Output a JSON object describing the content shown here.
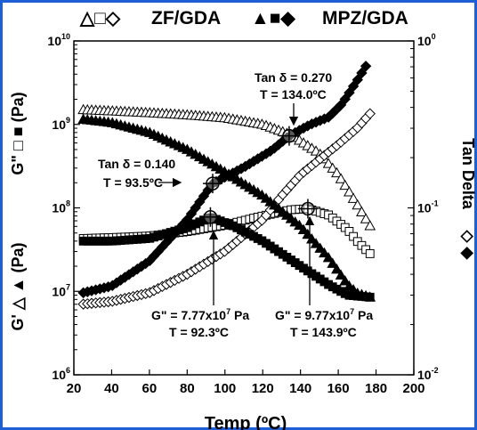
{
  "colors": {
    "frame": "#1e5fd6",
    "ink": "#000000",
    "open_marker": "#ffffff"
  },
  "legend": {
    "zf_symbols": "△□◇",
    "zf_label": "ZF/GDA",
    "mpz_symbols": "▲■◆",
    "mpz_label": "MPZ/GDA"
  },
  "axes": {
    "xlabel": "Temp (ºC)",
    "ylabel_left_top": "G\" □ ■ (Pa)",
    "ylabel_left_bottom": "G' △ ▲ (Pa)",
    "ylabel_right_top": "Tan Delta",
    "ylabel_right_bottom": "◇ ◆"
  },
  "annotations": [
    {
      "id": "tan-delta-270",
      "line1": "Tan δ = 0.270",
      "line2": "T = 134.0ºC"
    },
    {
      "id": "tan-delta-140",
      "line1": "Tan δ = 0.140",
      "line2": "T = 93.5ºC"
    },
    {
      "id": "g2-777",
      "line1": "G\" = 7.77x10",
      "line1_sup": "7",
      "line1_unit": " Pa",
      "line2": "T = 92.3ºC"
    },
    {
      "id": "g2-977",
      "line1": "G\" = 9.77x10",
      "line1_sup": "7",
      "line1_unit": " Pa",
      "line2": "T = 143.9ºC"
    }
  ],
  "chart_data": {
    "type": "scatter",
    "xlabel": "Temp (ºC)",
    "x_ticks": [
      "20",
      "40",
      "60",
      "80",
      "100",
      "120",
      "140",
      "160",
      "180",
      "200"
    ],
    "xlim": [
      20,
      200
    ],
    "y_left": {
      "scale": "log",
      "lim": [
        1000000,
        10000000000
      ],
      "ticks": [
        {
          "value": 1000000,
          "base": "10",
          "exp": "6"
        },
        {
          "value": 10000000,
          "base": "10",
          "exp": "7"
        },
        {
          "value": 100000000,
          "base": "10",
          "exp": "8"
        },
        {
          "value": 1000000000,
          "base": "10",
          "exp": "9"
        },
        {
          "value": 10000000000,
          "base": "10",
          "exp": "10"
        }
      ]
    },
    "y_right": {
      "scale": "log",
      "lim": [
        0.01,
        1
      ],
      "ticks": [
        {
          "value": 0.01,
          "base": "10",
          "exp": "-2"
        },
        {
          "value": 0.1,
          "base": "10",
          "exp": "-1"
        },
        {
          "value": 1,
          "base": "10",
          "exp": "0"
        }
      ]
    },
    "series": [
      {
        "id": "zf-gprime",
        "marker": "triangle",
        "filled": false,
        "axis": "left",
        "points": [
          [
            25,
            1500000000.0
          ],
          [
            40,
            1450000000.0
          ],
          [
            60,
            1380000000.0
          ],
          [
            80,
            1300000000.0
          ],
          [
            100,
            1200000000.0
          ],
          [
            120,
            1000000000.0
          ],
          [
            135,
            750000000.0
          ],
          [
            150,
            450000000.0
          ],
          [
            160,
            250000000.0
          ],
          [
            170,
            110000000.0
          ],
          [
            178,
            55000000.0
          ]
        ]
      },
      {
        "id": "zf-gdoubleprime",
        "marker": "square",
        "filled": false,
        "axis": "left",
        "points": [
          [
            25,
            43000000.0
          ],
          [
            40,
            44000000.0
          ],
          [
            60,
            46000000.0
          ],
          [
            80,
            52000000.0
          ],
          [
            100,
            62000000.0
          ],
          [
            120,
            80000000.0
          ],
          [
            135,
            95000000.0
          ],
          [
            143.9,
            97700000.0
          ],
          [
            155,
            82000000.0
          ],
          [
            165,
            55000000.0
          ],
          [
            170,
            40000000.0
          ],
          [
            177,
            28000000.0
          ]
        ]
      },
      {
        "id": "zf-tandelta",
        "marker": "diamond",
        "filled": false,
        "axis": "right",
        "points": [
          [
            25,
            0.0265
          ],
          [
            40,
            0.0275
          ],
          [
            60,
            0.031
          ],
          [
            80,
            0.04
          ],
          [
            100,
            0.055
          ],
          [
            120,
            0.085
          ],
          [
            130,
            0.118
          ],
          [
            140,
            0.158
          ],
          [
            150,
            0.195
          ],
          [
            160,
            0.24
          ],
          [
            170,
            0.3
          ],
          [
            178,
            0.38
          ]
        ]
      },
      {
        "id": "mpz-gprime",
        "marker": "triangle",
        "filled": true,
        "axis": "left",
        "points": [
          [
            25,
            1150000000.0
          ],
          [
            40,
            1050000000.0
          ],
          [
            60,
            800000000.0
          ],
          [
            80,
            500000000.0
          ],
          [
            100,
            270000000.0
          ],
          [
            120,
            140000000.0
          ],
          [
            140,
            60000000.0
          ],
          [
            155,
            25000000.0
          ],
          [
            165,
            12000000.0
          ],
          [
            170,
            9500000.0
          ],
          [
            177,
            8500000.0
          ]
        ]
      },
      {
        "id": "mpz-gdoubleprime",
        "marker": "square",
        "filled": true,
        "axis": "left",
        "points": [
          [
            25,
            40000000.0
          ],
          [
            40,
            40000000.0
          ],
          [
            60,
            43000000.0
          ],
          [
            80,
            58000000.0
          ],
          [
            92.3,
            77700000.0
          ],
          [
            105,
            60000000.0
          ],
          [
            120,
            40000000.0
          ],
          [
            140,
            20000000.0
          ],
          [
            155,
            12000000.0
          ],
          [
            165,
            9000000.0
          ],
          [
            177,
            8500000.0
          ]
        ]
      },
      {
        "id": "mpz-tandelta",
        "marker": "diamond",
        "filled": true,
        "axis": "right",
        "points": [
          [
            25,
            0.031
          ],
          [
            40,
            0.034
          ],
          [
            60,
            0.048
          ],
          [
            80,
            0.085
          ],
          [
            93.5,
            0.14
          ],
          [
            110,
            0.175
          ],
          [
            125,
            0.222
          ],
          [
            134,
            0.27
          ],
          [
            145,
            0.315
          ],
          [
            155,
            0.35
          ],
          [
            162,
            0.42
          ],
          [
            170,
            0.58
          ],
          [
            176,
            0.75
          ]
        ]
      }
    ],
    "highlight_points": [
      {
        "id": "mpz-tan-mark",
        "x": 93.5,
        "y": 0.14,
        "axis": "right"
      },
      {
        "id": "zf-tan-mark",
        "x": 134.0,
        "y": 0.27,
        "axis": "right"
      },
      {
        "id": "mpz-g2-mark",
        "x": 92.3,
        "y": 77700000,
        "axis": "left"
      },
      {
        "id": "zf-g2-mark",
        "x": 143.9,
        "y": 97700000,
        "axis": "left"
      }
    ]
  }
}
